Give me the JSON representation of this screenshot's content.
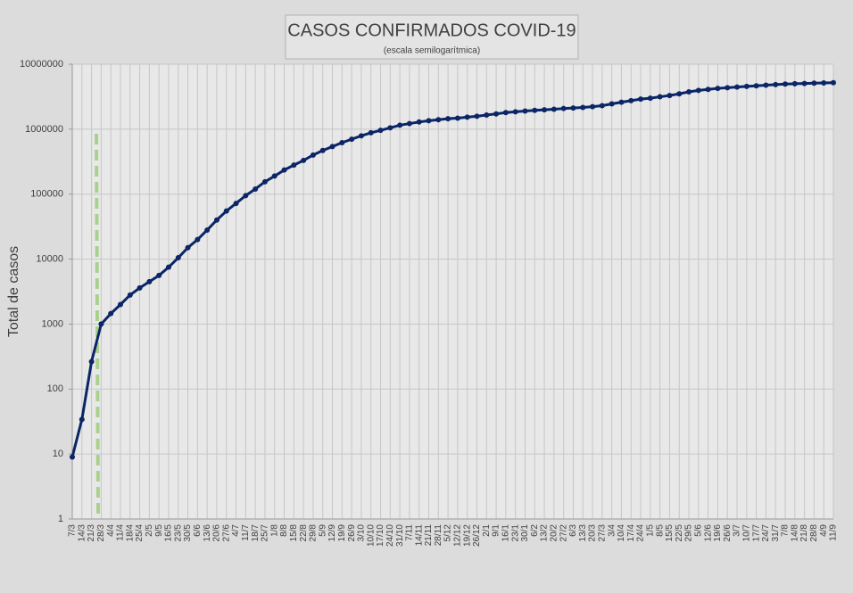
{
  "chart_data": {
    "type": "line",
    "title": "CASOS CONFIRMADOS COVID-19",
    "subtitle": "(escala semilogarítmica)",
    "y_label": "Total de casos",
    "log_y": true,
    "grid": true,
    "color": "#0b2566",
    "categories": [
      "7/3",
      "14/3",
      "21/3",
      "28/3",
      "4/4",
      "11/4",
      "18/4",
      "25/4",
      "2/5",
      "9/5",
      "16/5",
      "23/5",
      "30/5",
      "6/6",
      "13/6",
      "20/6",
      "27/6",
      "4/7",
      "11/7",
      "18/7",
      "25/7",
      "1/8",
      "8/8",
      "15/8",
      "22/8",
      "29/8",
      "5/9",
      "12/9",
      "19/9",
      "26/9",
      "3/10",
      "10/10",
      "17/10",
      "24/10",
      "31/10",
      "7/11",
      "14/11",
      "21/11",
      "28/11",
      "5/12",
      "12/12",
      "19/12",
      "26/12",
      "2/1",
      "9/1",
      "16/1",
      "23/1",
      "30/1",
      "6/2",
      "13/2",
      "20/2",
      "27/2",
      "6/3",
      "13/3",
      "20/3",
      "27/3",
      "3/4",
      "10/4",
      "17/4",
      "24/4",
      "1/5",
      "8/5",
      "15/5",
      "22/5",
      "29/5",
      "5/6",
      "12/6",
      "19/6",
      "26/6",
      "3/7",
      "10/7",
      "17/7",
      "24/7",
      "31/7",
      "7/8",
      "14/8",
      "21/8",
      "28/8",
      "4/9",
      "11/9"
    ],
    "values": [
      9,
      34,
      265,
      1000,
      1450,
      2000,
      2800,
      3600,
      4500,
      5600,
      7500,
      10500,
      15000,
      20000,
      28000,
      40000,
      55000,
      72000,
      95000,
      120000,
      155000,
      190000,
      235000,
      280000,
      330000,
      400000,
      470000,
      540000,
      620000,
      700000,
      790000,
      880000,
      960000,
      1050000,
      1150000,
      1220000,
      1290000,
      1350000,
      1400000,
      1450000,
      1480000,
      1530000,
      1580000,
      1650000,
      1720000,
      1800000,
      1850000,
      1900000,
      1950000,
      1990000,
      2030000,
      2080000,
      2120000,
      2160000,
      2220000,
      2300000,
      2450000,
      2600000,
      2750000,
      2900000,
      3000000,
      3150000,
      3300000,
      3500000,
      3750000,
      3950000,
      4100000,
      4250000,
      4350000,
      4450000,
      4550000,
      4650000,
      4750000,
      4850000,
      4950000,
      5000000,
      5050000,
      5100000,
      5150000,
      5200000
    ],
    "ylim": [
      1,
      10000000
    ],
    "yticks": [
      1,
      10,
      100,
      1000,
      10000,
      100000,
      1000000,
      10000000
    ]
  }
}
